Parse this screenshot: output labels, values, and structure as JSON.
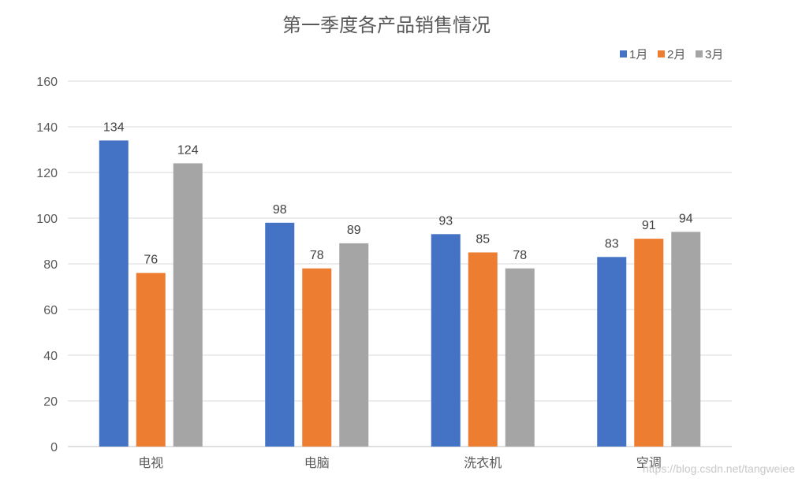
{
  "chart_data": {
    "type": "bar",
    "title": "第一季度各产品销售情况",
    "categories": [
      "电视",
      "电脑",
      "洗衣机",
      "空调"
    ],
    "series": [
      {
        "name": "1月",
        "color": "#4472C4",
        "values": [
          134,
          98,
          93,
          83
        ]
      },
      {
        "name": "2月",
        "color": "#ED7D31",
        "values": [
          76,
          78,
          85,
          91
        ]
      },
      {
        "name": "3月",
        "color": "#A5A5A5",
        "values": [
          124,
          89,
          78,
          94
        ]
      }
    ],
    "ylim": [
      0,
      160
    ],
    "yticks": [
      0,
      20,
      40,
      60,
      80,
      100,
      120,
      140,
      160
    ],
    "grid": true,
    "legend_position": "top-right",
    "data_labels": true
  },
  "watermark": "https://blog.csdn.net/tangweiee"
}
